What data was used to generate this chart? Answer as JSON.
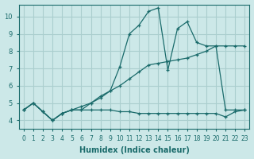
{
  "xlabel": "Humidex (Indice chaleur)",
  "background_color": "#cce8e8",
  "grid_color": "#aacece",
  "line_color": "#1a6b6b",
  "xlim": [
    -0.5,
    23.5
  ],
  "ylim": [
    3.5,
    10.7
  ],
  "yticks": [
    4,
    5,
    6,
    7,
    8,
    9,
    10
  ],
  "xticks": [
    0,
    1,
    2,
    3,
    4,
    5,
    6,
    7,
    8,
    9,
    10,
    11,
    12,
    13,
    14,
    15,
    16,
    17,
    18,
    19,
    20,
    21,
    22,
    23
  ],
  "series": [
    {
      "x": [
        0,
        1,
        2,
        3,
        4,
        5,
        6,
        7,
        8,
        9,
        10,
        11,
        12,
        13,
        14,
        15,
        16,
        17,
        18,
        19,
        20,
        21,
        22,
        23
      ],
      "y": [
        4.6,
        5.0,
        4.5,
        4.0,
        4.4,
        4.6,
        4.6,
        4.6,
        4.6,
        4.6,
        4.5,
        4.5,
        4.4,
        4.4,
        4.4,
        4.4,
        4.4,
        4.4,
        4.4,
        4.4,
        4.4,
        4.2,
        4.5,
        4.6
      ]
    },
    {
      "x": [
        0,
        1,
        2,
        3,
        4,
        5,
        6,
        7,
        8,
        9,
        10,
        11,
        12,
        13,
        14,
        15,
        16,
        17,
        18,
        19,
        20,
        21,
        22,
        23
      ],
      "y": [
        4.6,
        5.0,
        4.5,
        4.0,
        4.4,
        4.6,
        4.8,
        5.0,
        5.3,
        5.7,
        6.0,
        6.4,
        6.8,
        7.2,
        7.3,
        7.4,
        7.5,
        7.6,
        7.8,
        8.0,
        8.3,
        8.3,
        8.3,
        8.3
      ]
    },
    {
      "x": [
        0,
        1,
        2,
        3,
        4,
        5,
        6,
        7,
        8,
        9,
        10,
        11,
        12,
        13,
        14,
        15,
        16,
        17,
        18,
        19,
        20,
        21,
        22,
        23
      ],
      "y": [
        4.6,
        5.0,
        4.5,
        4.0,
        4.4,
        4.6,
        4.6,
        5.0,
        5.4,
        5.7,
        7.1,
        9.0,
        9.5,
        10.3,
        10.5,
        6.9,
        9.3,
        9.7,
        8.5,
        8.3,
        8.3,
        4.6,
        4.6,
        4.6
      ]
    }
  ]
}
